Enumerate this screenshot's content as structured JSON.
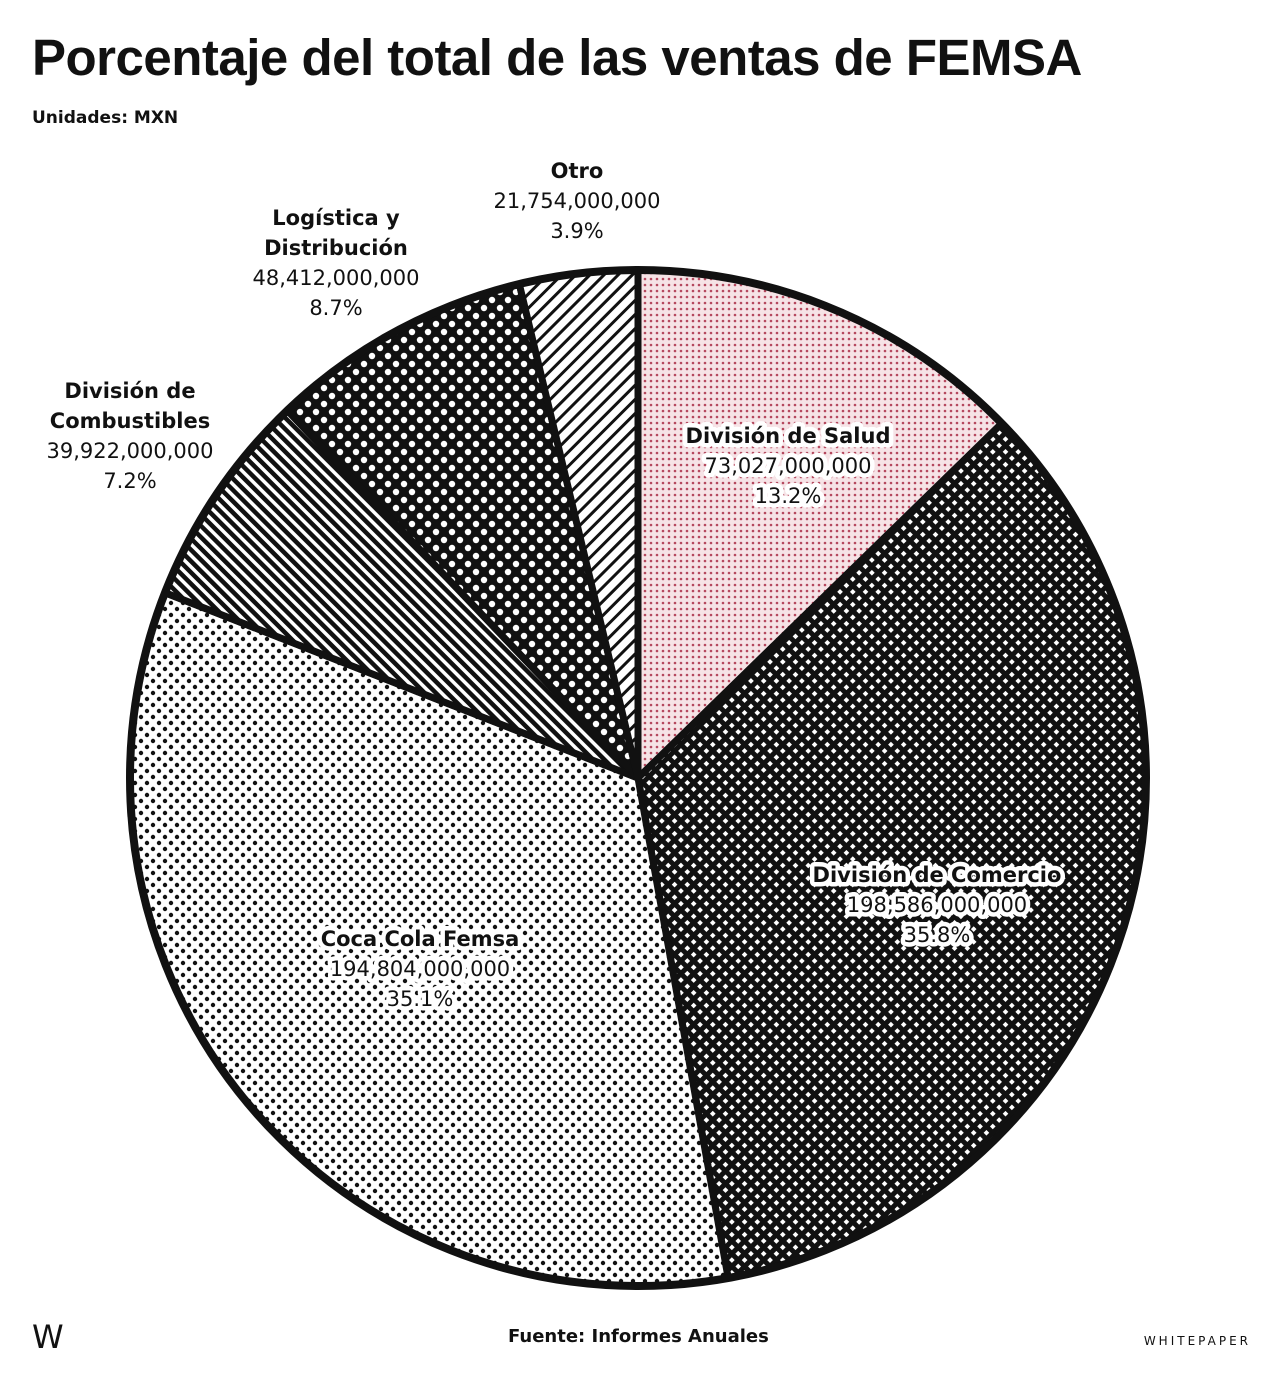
{
  "title": "Porcentaje del total de las ventas de FEMSA",
  "subtitle": "Unidades: MXN",
  "footer": {
    "logo": "W",
    "source": "Fuente: Informes Anuales",
    "brand": "WHITEPAPER"
  },
  "chart_data": {
    "type": "pie",
    "title": "Porcentaje del total de las ventas de FEMSA",
    "slices": [
      {
        "name_lines": [
          "División de Salud"
        ],
        "value": "73,027,000,000",
        "pct": "13.2%",
        "share": 13.2,
        "pattern": "pink-dots"
      },
      {
        "name_lines": [
          "División de Comercio"
        ],
        "value": "198,586,000,000",
        "pct": "35.8%",
        "share": 35.8,
        "pattern": "crosshatch"
      },
      {
        "name_lines": [
          "Coca Cola Femsa"
        ],
        "value": "194,804,000,000",
        "pct": "35.1%",
        "share": 35.1,
        "pattern": "dots"
      },
      {
        "name_lines": [
          "División de",
          "Combustibles"
        ],
        "value": "39,922,000,000",
        "pct": "7.2%",
        "share": 7.2,
        "pattern": "diagonal-left"
      },
      {
        "name_lines": [
          "Logística y",
          "Distribución"
        ],
        "value": "48,412,000,000",
        "pct": "8.7%",
        "share": 8.7,
        "pattern": "checker-dots"
      },
      {
        "name_lines": [
          "Otro"
        ],
        "value": "21,754,000,000",
        "pct": "3.9%",
        "share": 3.9,
        "pattern": "diagonal-right"
      }
    ],
    "start": "top",
    "direction": "clockwise",
    "colors": {
      "salud": "#b5485e",
      "outline": "#111111"
    }
  }
}
